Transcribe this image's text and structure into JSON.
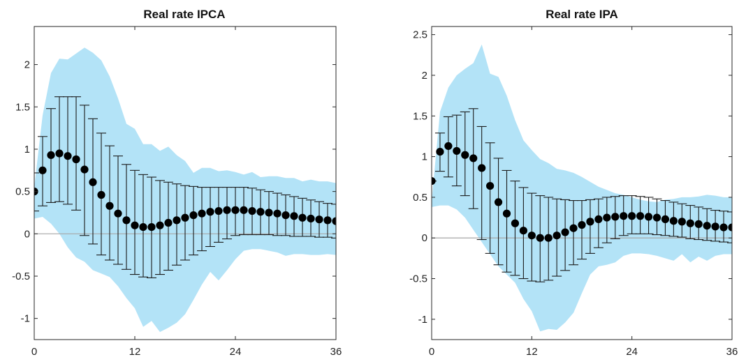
{
  "colors": {
    "band": "#b3e3f7",
    "marker": "#000000",
    "whisker": "#1a1a1a",
    "zero_line": "#a6a6a6",
    "axes": "#262626"
  },
  "chart_data": [
    {
      "type": "line",
      "title": "Real rate IPCA",
      "xlim": [
        0,
        36
      ],
      "ylim": [
        -1.25,
        2.45
      ],
      "xticks": [
        0,
        12,
        24,
        36
      ],
      "xtick_labels": [
        "0",
        "12",
        "24",
        "36"
      ],
      "yticks": [
        -1,
        -0.5,
        0,
        0.5,
        1,
        1.5,
        2
      ],
      "ytick_labels": [
        "-1",
        "-0.5",
        "0",
        "0.5",
        "1",
        "1.5",
        "2"
      ],
      "grid": false,
      "zero_line": true,
      "x": [
        0,
        1,
        2,
        3,
        4,
        5,
        6,
        7,
        8,
        9,
        10,
        11,
        12,
        13,
        14,
        15,
        16,
        17,
        18,
        19,
        20,
        21,
        22,
        23,
        24,
        25,
        26,
        27,
        28,
        29,
        30,
        31,
        32,
        33,
        34,
        35,
        36
      ],
      "series": [
        {
          "role": "point_estimate",
          "marker": "circle",
          "values": [
            0.5,
            0.75,
            0.93,
            0.95,
            0.92,
            0.88,
            0.76,
            0.61,
            0.46,
            0.33,
            0.24,
            0.16,
            0.1,
            0.08,
            0.08,
            0.1,
            0.13,
            0.16,
            0.19,
            0.22,
            0.24,
            0.26,
            0.27,
            0.28,
            0.28,
            0.28,
            0.27,
            0.26,
            0.25,
            0.24,
            0.22,
            0.21,
            0.19,
            0.18,
            0.17,
            0.16,
            0.15
          ]
        },
        {
          "role": "error_bar_lower",
          "values": [
            0.27,
            0.33,
            0.37,
            0.38,
            0.35,
            0.28,
            -0.02,
            -0.12,
            -0.25,
            -0.31,
            -0.36,
            -0.42,
            -0.48,
            -0.51,
            -0.52,
            -0.48,
            -0.43,
            -0.37,
            -0.31,
            -0.25,
            -0.2,
            -0.15,
            -0.1,
            -0.06,
            -0.02,
            -0.01,
            -0.01,
            -0.01,
            -0.01,
            -0.02,
            -0.02,
            -0.03,
            -0.03,
            -0.03,
            -0.04,
            -0.04,
            -0.05
          ]
        },
        {
          "role": "error_bar_upper",
          "values": [
            0.72,
            1.15,
            1.48,
            1.62,
            1.62,
            1.62,
            1.52,
            1.36,
            1.19,
            1.04,
            0.92,
            0.82,
            0.75,
            0.7,
            0.67,
            0.63,
            0.61,
            0.59,
            0.57,
            0.56,
            0.55,
            0.55,
            0.55,
            0.55,
            0.55,
            0.55,
            0.54,
            0.52,
            0.5,
            0.48,
            0.46,
            0.44,
            0.42,
            0.4,
            0.38,
            0.36,
            0.35
          ]
        },
        {
          "role": "band_upper",
          "values": [
            0.55,
            1.4,
            1.9,
            2.07,
            2.06,
            2.13,
            2.2,
            2.14,
            2.05,
            1.86,
            1.6,
            1.3,
            1.24,
            1.06,
            1.06,
            0.98,
            1.03,
            0.93,
            0.86,
            0.72,
            0.78,
            0.78,
            0.74,
            0.75,
            0.73,
            0.7,
            0.73,
            0.67,
            0.68,
            0.68,
            0.66,
            0.66,
            0.62,
            0.64,
            0.62,
            0.62,
            0.6
          ]
        },
        {
          "role": "band_lower",
          "values": [
            0.18,
            0.2,
            0.12,
            0.0,
            -0.16,
            -0.28,
            -0.33,
            -0.43,
            -0.47,
            -0.51,
            -0.62,
            -0.76,
            -0.88,
            -1.1,
            -1.03,
            -1.16,
            -1.11,
            -1.05,
            -0.95,
            -0.78,
            -0.6,
            -0.45,
            -0.55,
            -0.43,
            -0.3,
            -0.2,
            -0.18,
            -0.18,
            -0.2,
            -0.22,
            -0.26,
            -0.24,
            -0.24,
            -0.25,
            -0.25,
            -0.24,
            -0.25
          ]
        }
      ]
    },
    {
      "type": "line",
      "title": "Real rate IPA",
      "xlim": [
        0,
        36
      ],
      "ylim": [
        -1.25,
        2.6
      ],
      "xticks": [
        0,
        12,
        24,
        36
      ],
      "xtick_labels": [
        "0",
        "12",
        "24",
        "36"
      ],
      "yticks": [
        -1,
        -0.5,
        0,
        0.5,
        1,
        1.5,
        2,
        2.5
      ],
      "ytick_labels": [
        "-1",
        "-0.5",
        "0",
        "0.5",
        "1",
        "1.5",
        "2",
        "2.5"
      ],
      "grid": false,
      "zero_line": true,
      "x": [
        0,
        1,
        2,
        3,
        4,
        5,
        6,
        7,
        8,
        9,
        10,
        11,
        12,
        13,
        14,
        15,
        16,
        17,
        18,
        19,
        20,
        21,
        22,
        23,
        24,
        25,
        26,
        27,
        28,
        29,
        30,
        31,
        32,
        33,
        34,
        35,
        36
      ],
      "series": [
        {
          "role": "point_estimate",
          "marker": "circle",
          "values": [
            0.7,
            1.06,
            1.13,
            1.07,
            1.02,
            0.98,
            0.86,
            0.64,
            0.44,
            0.3,
            0.18,
            0.09,
            0.03,
            0.0,
            0.0,
            0.03,
            0.07,
            0.12,
            0.16,
            0.2,
            0.23,
            0.25,
            0.26,
            0.27,
            0.27,
            0.27,
            0.26,
            0.25,
            0.23,
            0.21,
            0.2,
            0.18,
            0.17,
            0.15,
            0.14,
            0.13,
            0.13
          ]
        },
        {
          "role": "error_bar_lower",
          "values": [
            0.7,
            0.82,
            0.75,
            0.64,
            0.52,
            0.36,
            -0.02,
            -0.19,
            -0.33,
            -0.42,
            -0.46,
            -0.5,
            -0.53,
            -0.54,
            -0.52,
            -0.47,
            -0.4,
            -0.33,
            -0.26,
            -0.19,
            -0.12,
            -0.06,
            -0.01,
            0.03,
            0.05,
            0.05,
            0.05,
            0.04,
            0.03,
            0.02,
            0.01,
            -0.01,
            -0.02,
            -0.03,
            -0.04,
            -0.05,
            -0.06
          ]
        },
        {
          "role": "error_bar_upper",
          "values": [
            0.7,
            1.29,
            1.49,
            1.51,
            1.55,
            1.59,
            1.37,
            1.17,
            0.98,
            0.83,
            0.7,
            0.62,
            0.55,
            0.52,
            0.5,
            0.48,
            0.47,
            0.46,
            0.46,
            0.47,
            0.48,
            0.5,
            0.51,
            0.52,
            0.52,
            0.51,
            0.5,
            0.48,
            0.46,
            0.44,
            0.42,
            0.4,
            0.38,
            0.36,
            0.34,
            0.33,
            0.32
          ]
        },
        {
          "role": "band_upper",
          "values": [
            0.45,
            1.55,
            1.85,
            2.0,
            2.08,
            2.15,
            2.38,
            2.02,
            1.98,
            1.75,
            1.45,
            1.2,
            1.08,
            0.97,
            0.92,
            0.85,
            0.83,
            0.8,
            0.75,
            0.69,
            0.63,
            0.59,
            0.55,
            0.53,
            0.5,
            0.47,
            0.45,
            0.44,
            0.47,
            0.48,
            0.5,
            0.5,
            0.51,
            0.53,
            0.52,
            0.5,
            0.5
          ]
        },
        {
          "role": "band_lower",
          "values": [
            0.38,
            0.4,
            0.4,
            0.35,
            0.25,
            0.1,
            -0.05,
            -0.2,
            -0.35,
            -0.45,
            -0.55,
            -0.75,
            -0.9,
            -1.15,
            -1.12,
            -1.13,
            -1.04,
            -0.92,
            -0.68,
            -0.45,
            -0.35,
            -0.33,
            -0.3,
            -0.22,
            -0.19,
            -0.19,
            -0.2,
            -0.22,
            -0.25,
            -0.28,
            -0.2,
            -0.3,
            -0.23,
            -0.28,
            -0.22,
            -0.2,
            -0.2
          ]
        }
      ]
    }
  ]
}
